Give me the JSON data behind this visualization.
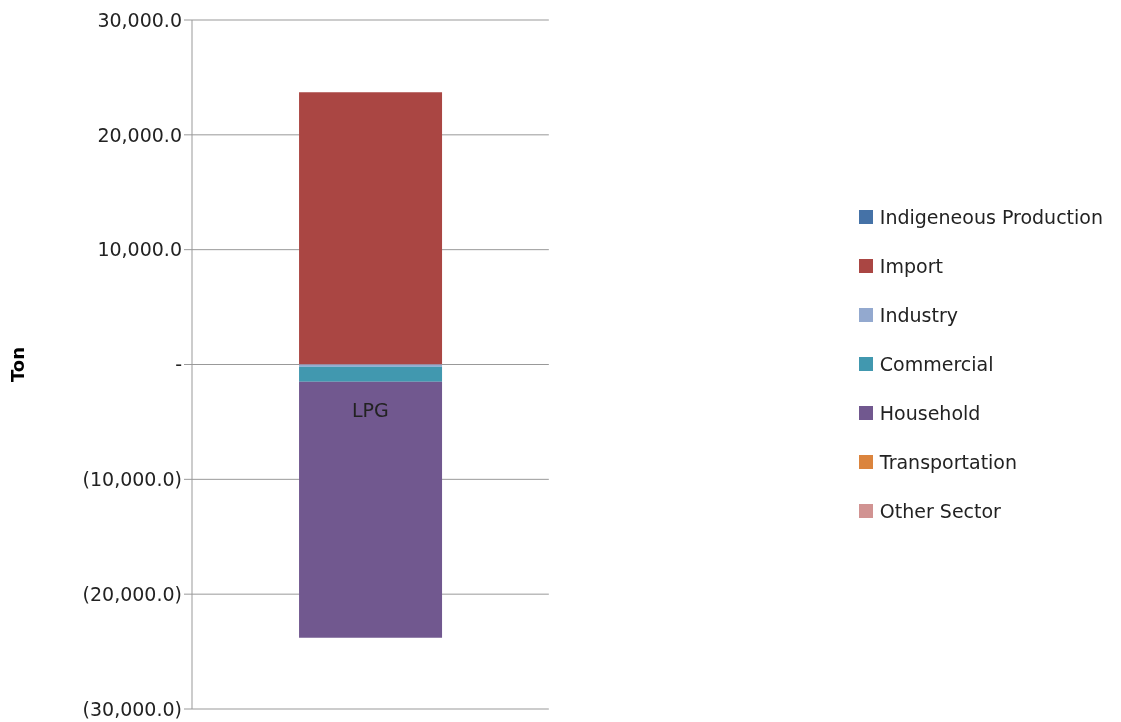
{
  "chart_data": {
    "type": "bar",
    "stacked": true,
    "ylabel": "Ton",
    "categories": [
      "LPG"
    ],
    "series": [
      {
        "name": "Indigeneous Production",
        "color": "#4572a7",
        "values": [
          0
        ]
      },
      {
        "name": "Import",
        "color": "#aa4643",
        "values": [
          23700
        ]
      },
      {
        "name": "Industry",
        "color": "#93a9cf",
        "values": [
          -200
        ]
      },
      {
        "name": "Commercial",
        "color": "#4198af",
        "values": [
          -1300
        ]
      },
      {
        "name": "Household",
        "color": "#71588f",
        "values": [
          -22300
        ]
      },
      {
        "name": "Transportation",
        "color": "#db843d",
        "values": [
          0
        ]
      },
      {
        "name": "Other Sector",
        "color": "#d19392",
        "values": [
          0
        ]
      }
    ],
    "ylim": [
      -30000,
      30000
    ],
    "yticks": [
      {
        "value": -30000,
        "label": "(30,000.0)"
      },
      {
        "value": -20000,
        "label": "(20,000.0)"
      },
      {
        "value": -10000,
        "label": "(10,000.0)"
      },
      {
        "value": 0,
        "label": "-"
      },
      {
        "value": 10000,
        "label": "10,000.0"
      },
      {
        "value": 20000,
        "label": "20,000.0"
      },
      {
        "value": 30000,
        "label": "30,000.0"
      }
    ],
    "grid": "y",
    "legend": "right"
  }
}
